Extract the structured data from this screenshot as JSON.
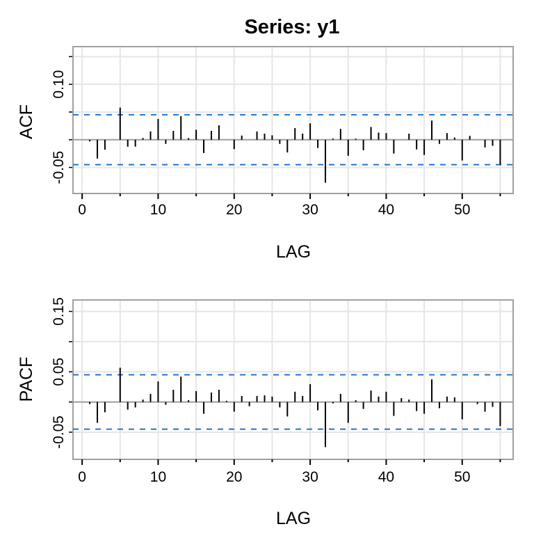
{
  "title": "Series:  y1",
  "colors": {
    "bounds": "#1f74d1",
    "spike": "#000000",
    "grid": "#e6e6e6",
    "border": "#a0a0a0",
    "zero_line": "#a0a0a0"
  },
  "chart_data": [
    {
      "type": "bar",
      "ylabel": "ACF",
      "xlabel": "LAG",
      "grid": true,
      "xlim": [
        -1.2,
        56.7
      ],
      "ylim": [
        -0.097,
        0.168
      ],
      "xticks": [
        0,
        10,
        20,
        30,
        40,
        50
      ],
      "xtick_labels": [
        "0",
        "10",
        "20",
        "30",
        "40",
        "50"
      ],
      "xminor_ticks": [
        5,
        15,
        25,
        35,
        45,
        55
      ],
      "yticks": [
        -0.05,
        0,
        0.05,
        0.1,
        0.15
      ],
      "ytick_labels": [
        {
          "value": 0.1,
          "label": "0.10"
        },
        {
          "value": -0.05,
          "label": "-0.05"
        }
      ],
      "confidence_bounds": [
        -0.045,
        0.045
      ],
      "lags": [
        1,
        2,
        3,
        4,
        5,
        6,
        7,
        8,
        9,
        10,
        11,
        12,
        13,
        14,
        15,
        16,
        17,
        18,
        19,
        20,
        21,
        22,
        23,
        24,
        25,
        26,
        27,
        28,
        29,
        30,
        31,
        32,
        33,
        34,
        35,
        36,
        37,
        38,
        39,
        40,
        41,
        42,
        43,
        44,
        45,
        46,
        47,
        48,
        49,
        50,
        51,
        52,
        53,
        54,
        55
      ],
      "values": [
        -0.003,
        -0.034,
        -0.018,
        0.0,
        0.058,
        -0.0125,
        -0.0125,
        0.003,
        0.015,
        0.0375,
        -0.0075,
        0.016,
        0.0425,
        0.003,
        0.018,
        -0.024,
        0.016,
        0.026,
        0.0,
        -0.017,
        0.0075,
        0.0,
        0.015,
        0.011,
        0.008,
        -0.0075,
        -0.023,
        0.021,
        0.011,
        0.0296,
        -0.015,
        -0.0775,
        0.002,
        0.0196,
        -0.029,
        0.002,
        -0.019,
        0.023,
        0.013,
        0.012,
        -0.025,
        0.0,
        0.011,
        -0.0175,
        -0.0275,
        0.0346,
        -0.0075,
        0.012,
        0.004,
        -0.0375,
        0.007,
        0.0,
        -0.014,
        -0.011,
        -0.045
      ]
    },
    {
      "type": "bar",
      "ylabel": "PACF",
      "xlabel": "LAG",
      "grid": true,
      "xlim": [
        -1.2,
        56.7
      ],
      "ylim": [
        -0.095,
        0.169
      ],
      "xticks": [
        0,
        10,
        20,
        30,
        40,
        50
      ],
      "xtick_labels": [
        "0",
        "10",
        "20",
        "30",
        "40",
        "50"
      ],
      "xminor_ticks": [
        5,
        15,
        25,
        35,
        45,
        55
      ],
      "yticks": [
        -0.05,
        0,
        0.05,
        0.1,
        0.15
      ],
      "ytick_labels": [
        {
          "value": 0.15,
          "label": "0.15"
        },
        {
          "value": 0.05,
          "label": "0.05"
        },
        {
          "value": -0.05,
          "label": "-0.05"
        }
      ],
      "confidence_bounds": [
        -0.045,
        0.045
      ],
      "lags": [
        1,
        2,
        3,
        4,
        5,
        6,
        7,
        8,
        9,
        10,
        11,
        12,
        13,
        14,
        15,
        16,
        17,
        18,
        19,
        20,
        21,
        22,
        23,
        24,
        25,
        26,
        27,
        28,
        29,
        30,
        31,
        32,
        33,
        34,
        35,
        36,
        37,
        38,
        39,
        40,
        41,
        42,
        43,
        44,
        45,
        46,
        47,
        48,
        49,
        50,
        51,
        52,
        53,
        54,
        55
      ],
      "values": [
        -0.0035,
        -0.0345,
        -0.017,
        0.0,
        0.0567,
        -0.0126,
        -0.009,
        0.004,
        0.0134,
        0.034,
        -0.0046,
        0.0203,
        0.042,
        0.003,
        0.018,
        -0.0195,
        0.0157,
        0.0203,
        0.002,
        -0.016,
        0.01,
        -0.007,
        0.01,
        0.011,
        0.009,
        -0.009,
        -0.024,
        0.017,
        0.01,
        0.0295,
        -0.0138,
        -0.0747,
        -0.0023,
        0.0134,
        -0.0345,
        0.003,
        -0.0115,
        0.019,
        0.009,
        0.017,
        -0.023,
        0.0065,
        0.004,
        -0.015,
        -0.0195,
        0.0375,
        -0.0103,
        0.009,
        0.0077,
        -0.0287,
        0.0,
        -0.0035,
        -0.016,
        -0.008,
        -0.04
      ]
    }
  ]
}
